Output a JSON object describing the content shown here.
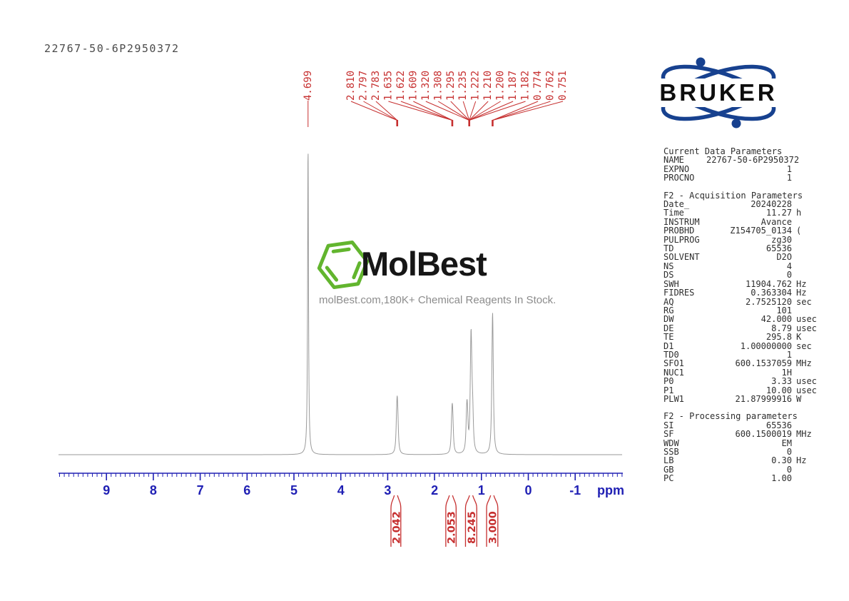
{
  "title": "22767-50-6P2950372",
  "bruker_wordmark": "BRUKER",
  "watermark": {
    "brand": "MolBest",
    "caption": "molBest.com,180K+ Chemical Reagents In Stock."
  },
  "colors": {
    "label_red": "#c62f2f",
    "axis_blue": "#2020b4",
    "curve_gray": "#9a9a9a",
    "bruker_blue": "#17418f",
    "molbest_green": "#62b52e",
    "caption_gray": "#8c8c8c"
  },
  "params_sections": [
    {
      "heading": "Current Data Parameters",
      "rows": [
        {
          "label": "NAME",
          "value": "22767-50-6P2950372",
          "unit": ""
        },
        {
          "label": "EXPNO",
          "value": "1",
          "unit": ""
        },
        {
          "label": "PROCNO",
          "value": "1",
          "unit": ""
        }
      ]
    },
    {
      "heading": "F2 - Acquisition Parameters",
      "rows": [
        {
          "label": "Date_",
          "value": "20240228",
          "unit": ""
        },
        {
          "label": "Time",
          "value": "11.27",
          "unit": "h"
        },
        {
          "label": "INSTRUM",
          "value": "Avance",
          "unit": ""
        },
        {
          "label": "PROBHD",
          "value": "Z154705_0134",
          "unit": "("
        },
        {
          "label": "PULPROG",
          "value": "zg30",
          "unit": ""
        },
        {
          "label": "TD",
          "value": "65536",
          "unit": ""
        },
        {
          "label": "SOLVENT",
          "value": "D2O",
          "unit": ""
        },
        {
          "label": "NS",
          "value": "4",
          "unit": ""
        },
        {
          "label": "DS",
          "value": "0",
          "unit": ""
        },
        {
          "label": "SWH",
          "value": "11904.762",
          "unit": "Hz"
        },
        {
          "label": "FIDRES",
          "value": "0.363304",
          "unit": "Hz"
        },
        {
          "label": "AQ",
          "value": "2.7525120",
          "unit": "sec"
        },
        {
          "label": "RG",
          "value": "101",
          "unit": ""
        },
        {
          "label": "DW",
          "value": "42.000",
          "unit": "usec"
        },
        {
          "label": "DE",
          "value": "8.79",
          "unit": "usec"
        },
        {
          "label": "TE",
          "value": "295.8",
          "unit": "K"
        },
        {
          "label": "D1",
          "value": "1.00000000",
          "unit": "sec"
        },
        {
          "label": "TD0",
          "value": "1",
          "unit": ""
        },
        {
          "label": "SFO1",
          "value": "600.1537059",
          "unit": "MHz"
        },
        {
          "label": "NUC1",
          "value": "1H",
          "unit": ""
        },
        {
          "label": "P0",
          "value": "3.33",
          "unit": "usec"
        },
        {
          "label": "P1",
          "value": "10.00",
          "unit": "usec"
        },
        {
          "label": "PLW1",
          "value": "21.87999916",
          "unit": "W"
        }
      ]
    },
    {
      "heading": "F2 - Processing parameters",
      "rows": [
        {
          "label": "SI",
          "value": "65536",
          "unit": ""
        },
        {
          "label": "SF",
          "value": "600.1500019",
          "unit": "MHz"
        },
        {
          "label": "WDW",
          "value": "EM",
          "unit": ""
        },
        {
          "label": "SSB",
          "value": "0",
          "unit": ""
        },
        {
          "label": "LB",
          "value": "0.30",
          "unit": "Hz"
        },
        {
          "label": "GB",
          "value": "0",
          "unit": ""
        },
        {
          "label": "PC",
          "value": "1.00",
          "unit": ""
        }
      ]
    }
  ],
  "chart_data": {
    "type": "line",
    "title": "1H NMR spectrum 22767-50-6P2950372 (600 MHz, D2O)",
    "xlabel": "ppm",
    "x_ticks": [
      9,
      8,
      7,
      6,
      5,
      4,
      3,
      2,
      1,
      0,
      -1
    ],
    "x_range_ppm": [
      10.0,
      -2.0
    ],
    "x_axis_reversed": true,
    "grid": false,
    "peak_labels_ppm": [
      "4.699",
      "2.810",
      "2.797",
      "2.783",
      "1.635",
      "1.622",
      "1.609",
      "1.320",
      "1.308",
      "1.295",
      "1.235",
      "1.222",
      "1.210",
      "1.200",
      "1.187",
      "1.182",
      "0.774",
      "0.762",
      "0.751"
    ],
    "label_groups": [
      {
        "anchor_ppm": 4.699,
        "labels": [
          "4.699"
        ]
      },
      {
        "anchor_ppm": 2.797,
        "labels": [
          "2.810",
          "2.797",
          "2.783"
        ]
      },
      {
        "anchor_ppm": 1.622,
        "labels": [
          "1.635",
          "1.622",
          "1.609"
        ]
      },
      {
        "anchor_ppm": 1.26,
        "labels": [
          "1.320",
          "1.308",
          "1.295",
          "1.235",
          "1.222",
          "1.210",
          "1.200",
          "1.187",
          "1.182"
        ]
      },
      {
        "anchor_ppm": 0.762,
        "labels": [
          "0.774",
          "0.762",
          "0.751"
        ]
      }
    ],
    "peaks": [
      [
        4.699,
        1.0,
        0.011
      ],
      [
        2.81,
        0.068,
        0.015
      ],
      [
        2.797,
        0.115,
        0.015
      ],
      [
        2.783,
        0.068,
        0.015
      ],
      [
        1.635,
        0.058,
        0.015
      ],
      [
        1.622,
        0.098,
        0.015
      ],
      [
        1.609,
        0.06,
        0.015
      ],
      [
        1.32,
        0.055,
        0.015
      ],
      [
        1.308,
        0.095,
        0.015
      ],
      [
        1.295,
        0.06,
        0.015
      ],
      [
        1.235,
        0.095,
        0.015
      ],
      [
        1.222,
        0.245,
        0.014
      ],
      [
        1.21,
        0.105,
        0.015
      ],
      [
        1.2,
        0.06,
        0.018
      ],
      [
        1.187,
        0.045,
        0.015
      ],
      [
        1.182,
        0.04,
        0.015
      ],
      [
        0.774,
        0.125,
        0.015
      ],
      [
        0.762,
        0.3,
        0.014
      ],
      [
        0.751,
        0.125,
        0.015
      ]
    ],
    "integrals": [
      {
        "value": "2.042",
        "ppm_from": 2.93,
        "ppm_to": 2.72
      },
      {
        "value": "2.053",
        "ppm_from": 1.76,
        "ppm_to": 1.54
      },
      {
        "value": "8.245",
        "ppm_from": 1.34,
        "ppm_to": 1.1
      },
      {
        "value": "3.000",
        "ppm_from": 0.89,
        "ppm_to": 0.65
      }
    ]
  }
}
